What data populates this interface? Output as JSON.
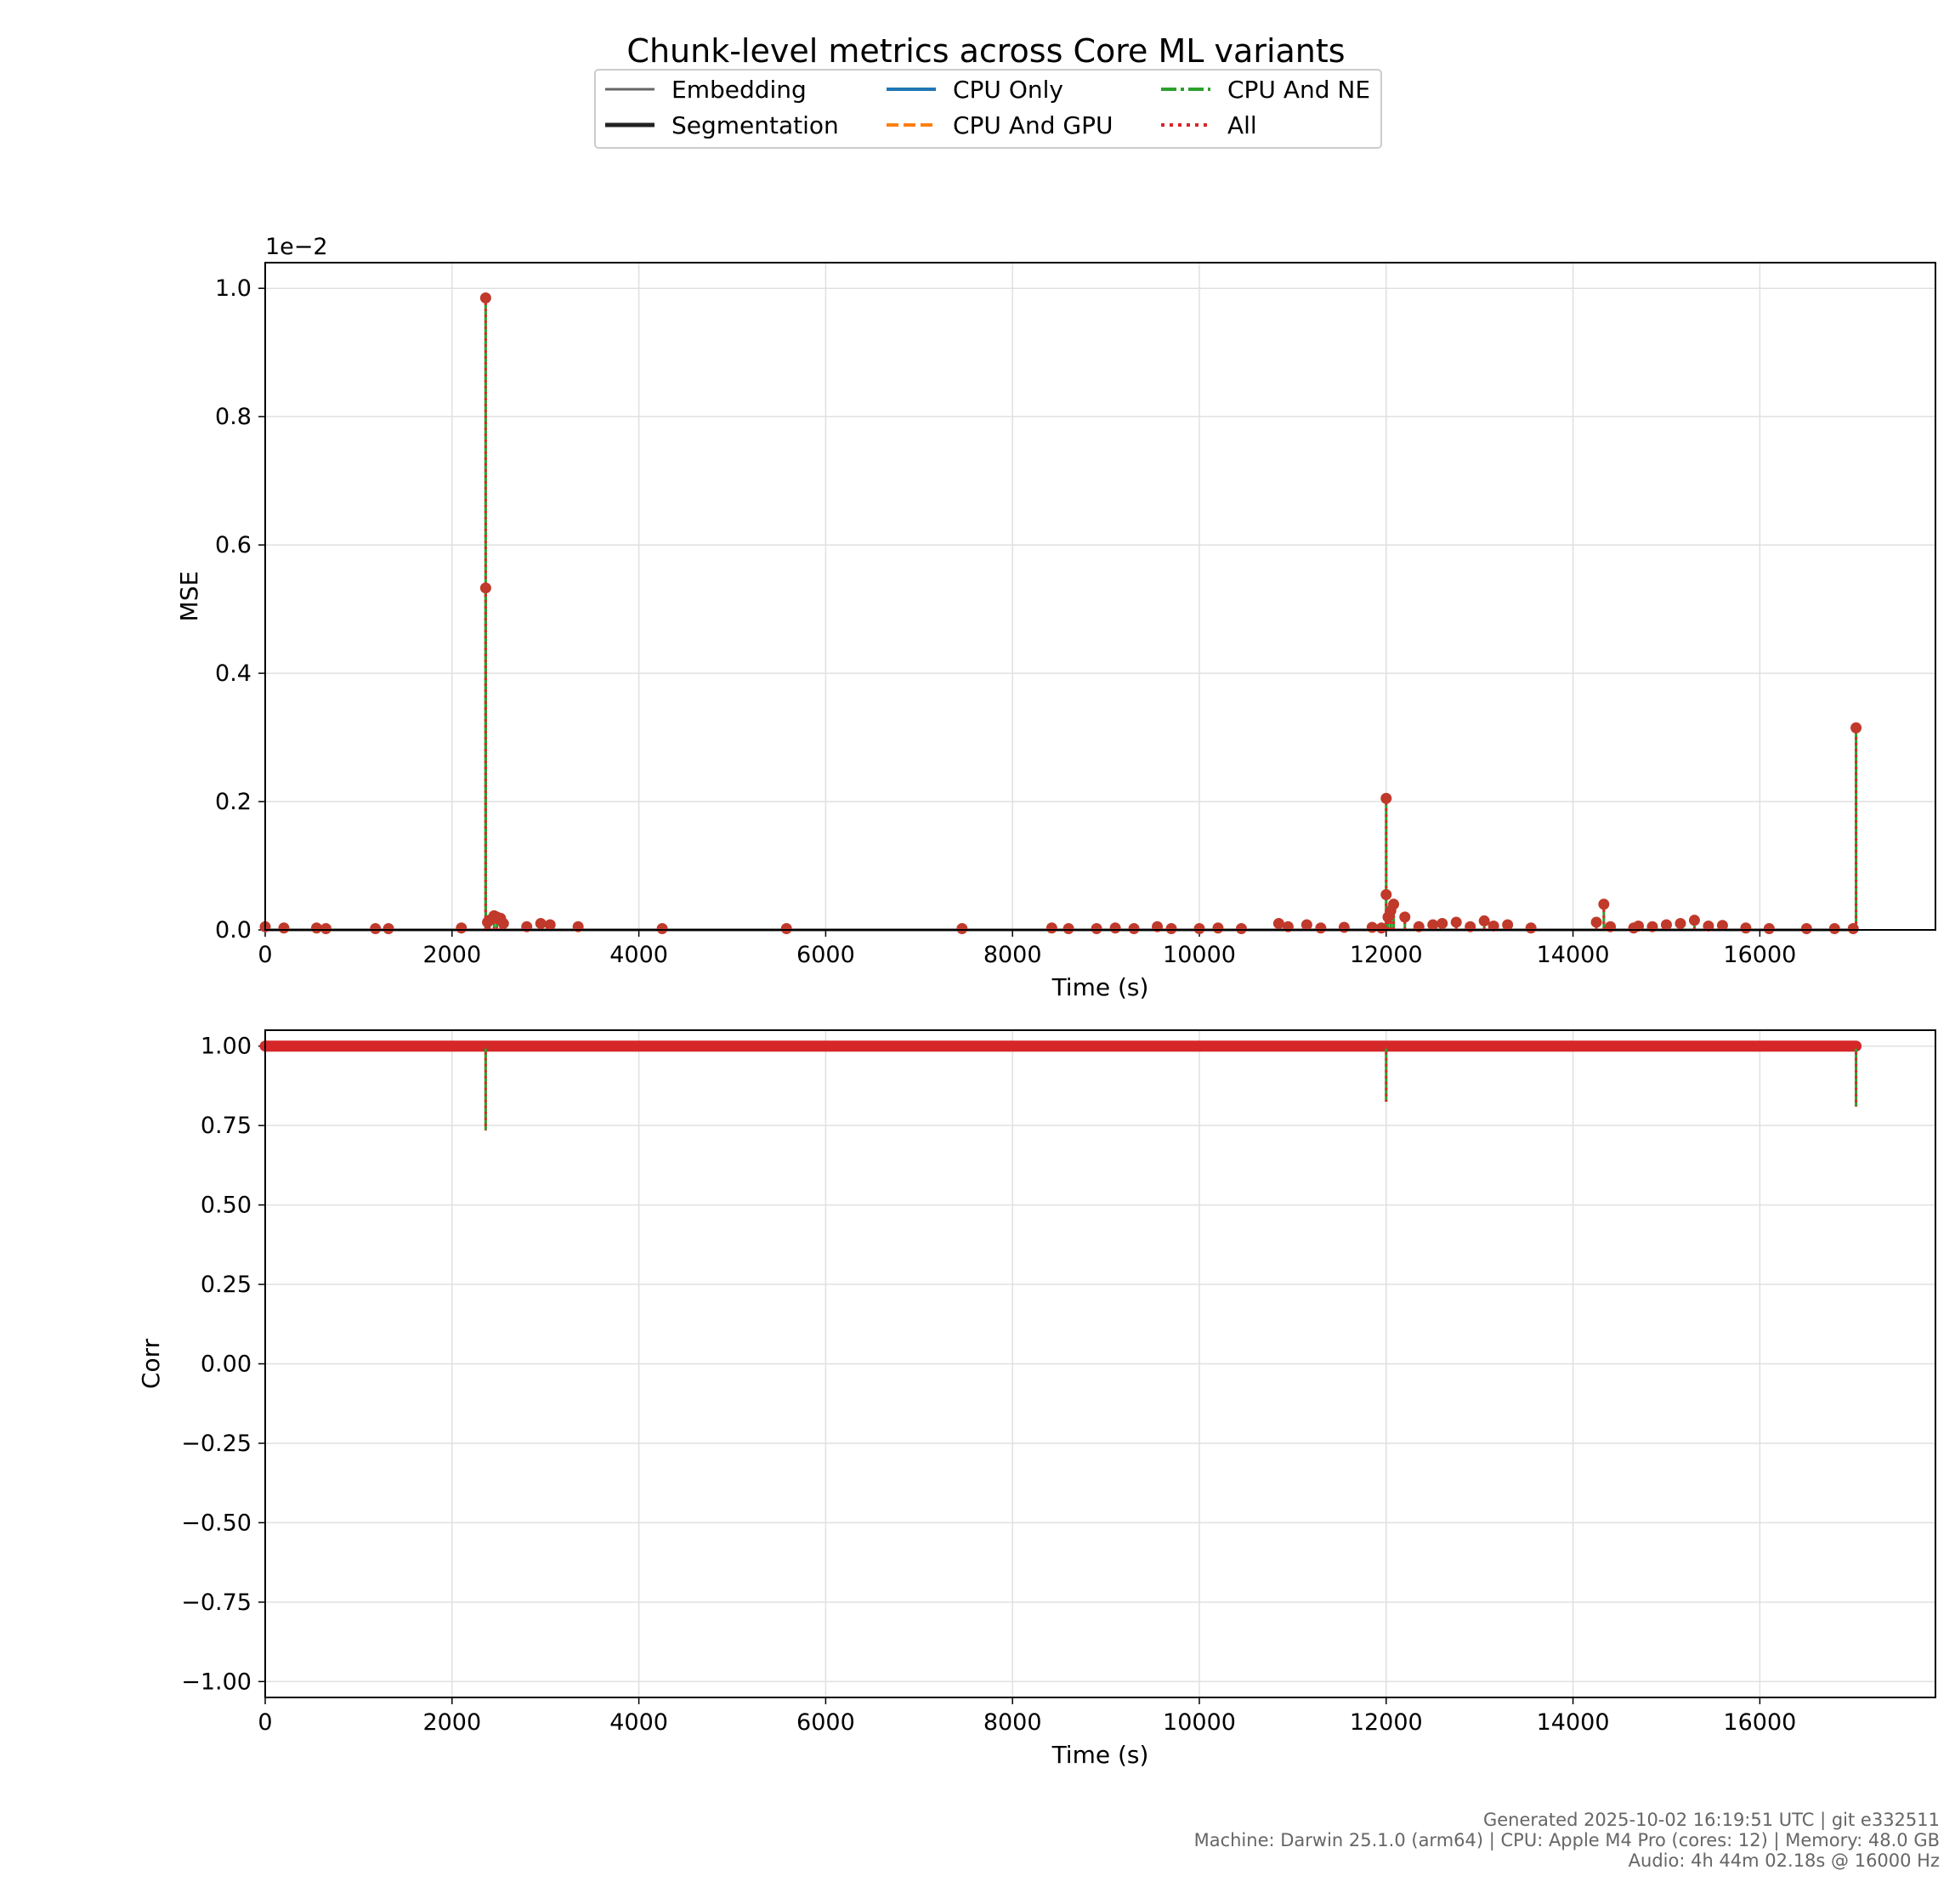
{
  "figure": {
    "title": "Chunk-level metrics across Core ML variants",
    "footer": [
      "Generated 2025-10-02 16:19:51 UTC | git e332511",
      "Machine: Darwin 25.1.0 (arm64) | CPU: Apple M4 Pro (cores: 12) | Memory: 48.0 GB",
      "Audio: 4h 44m 02.18s @ 16000 Hz"
    ]
  },
  "legend": {
    "placement": "top-center, below title",
    "entries": [
      {
        "label": "Embedding",
        "color": "#666666",
        "style": "solid-thin"
      },
      {
        "label": "Segmentation",
        "color": "#222222",
        "style": "solid-thick"
      },
      {
        "label": "CPU Only",
        "color": "#1f77b4",
        "style": "solid"
      },
      {
        "label": "CPU And GPU",
        "color": "#ff7f0e",
        "style": "dashed"
      },
      {
        "label": "CPU And NE",
        "color": "#2ca02c",
        "style": "dashdot"
      },
      {
        "label": "All",
        "color": "#d62728",
        "style": "dotted"
      }
    ]
  },
  "chart_data": [
    {
      "type": "line",
      "ylabel": "MSE",
      "xlabel": "Time (s)",
      "offset_label": "1e−2",
      "xlim": [
        0,
        17880
      ],
      "ylim": [
        0,
        1.04
      ],
      "xticks": [
        0,
        2000,
        4000,
        6000,
        8000,
        10000,
        12000,
        14000,
        16000
      ],
      "yticks": [
        0.0,
        0.2,
        0.4,
        0.6,
        0.8,
        1.0
      ],
      "ytick_labels": [
        "0.0",
        "0.2",
        "0.4",
        "0.6",
        "0.8",
        "1.0"
      ],
      "grid": true,
      "y_scale_note": "values in units of 1e-2",
      "series_color": "#c0392b",
      "baseline": 0.0,
      "points": [
        [
          0,
          0.005
        ],
        [
          200,
          0.003
        ],
        [
          550,
          0.003
        ],
        [
          650,
          0.002
        ],
        [
          1180,
          0.002
        ],
        [
          1320,
          0.002
        ],
        [
          2100,
          0.003
        ],
        [
          2360,
          0.985
        ],
        [
          2360,
          0.533
        ],
        [
          2380,
          0.012
        ],
        [
          2400,
          0.015
        ],
        [
          2450,
          0.022
        ],
        [
          2480,
          0.02
        ],
        [
          2520,
          0.018
        ],
        [
          2550,
          0.01
        ],
        [
          2800,
          0.005
        ],
        [
          2950,
          0.01
        ],
        [
          3050,
          0.008
        ],
        [
          3350,
          0.005
        ],
        [
          4250,
          0.002
        ],
        [
          5580,
          0.002
        ],
        [
          7460,
          0.002
        ],
        [
          8420,
          0.003
        ],
        [
          8600,
          0.002
        ],
        [
          8900,
          0.002
        ],
        [
          9100,
          0.003
        ],
        [
          9300,
          0.002
        ],
        [
          9550,
          0.005
        ],
        [
          9700,
          0.002
        ],
        [
          10000,
          0.002
        ],
        [
          10200,
          0.003
        ],
        [
          10450,
          0.002
        ],
        [
          10850,
          0.01
        ],
        [
          10950,
          0.005
        ],
        [
          11150,
          0.008
        ],
        [
          11300,
          0.003
        ],
        [
          11550,
          0.004
        ],
        [
          11850,
          0.004
        ],
        [
          11950,
          0.003
        ],
        [
          12000,
          0.205
        ],
        [
          12000,
          0.055
        ],
        [
          12020,
          0.02
        ],
        [
          12050,
          0.03
        ],
        [
          12080,
          0.04
        ],
        [
          12200,
          0.02
        ],
        [
          12350,
          0.005
        ],
        [
          12500,
          0.008
        ],
        [
          12600,
          0.01
        ],
        [
          12750,
          0.012
        ],
        [
          12900,
          0.005
        ],
        [
          13050,
          0.014
        ],
        [
          13150,
          0.006
        ],
        [
          13300,
          0.008
        ],
        [
          13550,
          0.003
        ],
        [
          14250,
          0.012
        ],
        [
          14330,
          0.04
        ],
        [
          14400,
          0.005
        ],
        [
          14650,
          0.003
        ],
        [
          14700,
          0.006
        ],
        [
          14850,
          0.005
        ],
        [
          15000,
          0.008
        ],
        [
          15150,
          0.01
        ],
        [
          15300,
          0.015
        ],
        [
          15450,
          0.006
        ],
        [
          15600,
          0.007
        ],
        [
          15850,
          0.003
        ],
        [
          16100,
          0.002
        ],
        [
          16500,
          0.002
        ],
        [
          16800,
          0.002
        ],
        [
          17000,
          0.002
        ],
        [
          17030,
          0.315
        ]
      ]
    },
    {
      "type": "line",
      "ylabel": "Corr",
      "xlabel": "Time (s)",
      "xlim": [
        0,
        17880
      ],
      "ylim": [
        -1.05,
        1.05
      ],
      "xticks": [
        0,
        2000,
        4000,
        6000,
        8000,
        10000,
        12000,
        14000,
        16000
      ],
      "yticks": [
        1.0,
        0.75,
        0.5,
        0.25,
        0.0,
        -0.25,
        -0.5,
        -0.75,
        -1.0
      ],
      "ytick_labels": [
        "1.00",
        "0.75",
        "0.50",
        "0.25",
        "0.00",
        "−0.25",
        "−0.50",
        "−0.75",
        "−1.00"
      ],
      "grid": true,
      "series_color": "#d62728",
      "baseline": 1.0,
      "points": [
        [
          0,
          1.0
        ],
        [
          17030,
          1.0
        ]
      ],
      "dips": [
        [
          2360,
          0.735
        ],
        [
          12000,
          0.825
        ],
        [
          17030,
          0.81
        ]
      ]
    }
  ]
}
